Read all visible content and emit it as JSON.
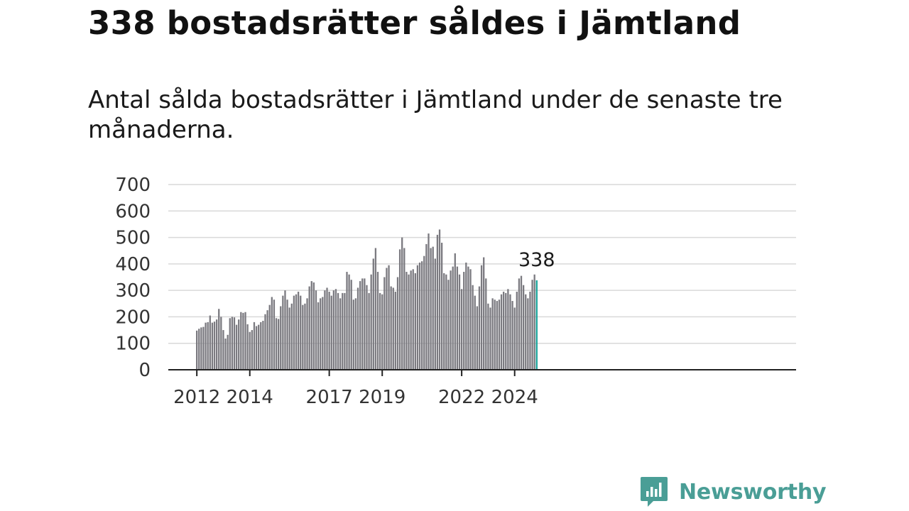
{
  "header": {
    "title": "338 bostadsrätter såldes i Jämtland",
    "subtitle": "Antal sålda bostadsrätter i Jämtland under de senaste tre månaderna."
  },
  "brand": {
    "name": "Newsworthy",
    "color": "#4a9e96"
  },
  "chart_data": {
    "type": "bar",
    "title": "338 bostadsrätter såldes i Jämtland",
    "subtitle": "Antal sålda bostadsrätter i Jämtland under de senaste tre månaderna.",
    "xlabel": "",
    "ylabel": "",
    "ylim": [
      0,
      700
    ],
    "yticks": [
      0,
      100,
      200,
      300,
      400,
      500,
      600,
      700
    ],
    "grid": true,
    "bar_color": "#7b7a80",
    "highlight_color": "#19a39a",
    "start": "2012-01",
    "x_tick_labels": [
      {
        "label": "2012",
        "month_index": 0
      },
      {
        "label": "2014",
        "month_index": 24
      },
      {
        "label": "2017",
        "month_index": 60
      },
      {
        "label": "2019",
        "month_index": 84
      },
      {
        "label": "2022",
        "month_index": 120
      },
      {
        "label": "2024",
        "month_index": 144
      }
    ],
    "highlight_label": "338",
    "values": [
      148,
      155,
      160,
      162,
      178,
      180,
      205,
      178,
      182,
      190,
      230,
      200,
      150,
      118,
      132,
      195,
      200,
      198,
      170,
      190,
      218,
      215,
      218,
      172,
      143,
      150,
      180,
      165,
      170,
      180,
      185,
      210,
      225,
      245,
      275,
      265,
      195,
      192,
      240,
      280,
      300,
      265,
      235,
      250,
      280,
      285,
      295,
      280,
      245,
      250,
      270,
      315,
      335,
      330,
      300,
      255,
      270,
      275,
      300,
      310,
      295,
      280,
      300,
      305,
      290,
      270,
      290,
      290,
      370,
      360,
      340,
      265,
      270,
      310,
      335,
      345,
      345,
      320,
      290,
      360,
      420,
      460,
      370,
      290,
      285,
      350,
      385,
      395,
      315,
      310,
      295,
      350,
      455,
      500,
      460,
      370,
      360,
      375,
      380,
      365,
      395,
      405,
      410,
      430,
      475,
      515,
      460,
      465,
      420,
      510,
      530,
      480,
      365,
      360,
      340,
      375,
      390,
      440,
      390,
      360,
      305,
      370,
      405,
      390,
      380,
      320,
      280,
      240,
      315,
      395,
      425,
      345,
      250,
      235,
      270,
      265,
      260,
      265,
      285,
      295,
      290,
      305,
      285,
      260,
      235,
      295,
      345,
      355,
      320,
      285,
      270,
      295,
      340,
      360,
      338
    ]
  }
}
